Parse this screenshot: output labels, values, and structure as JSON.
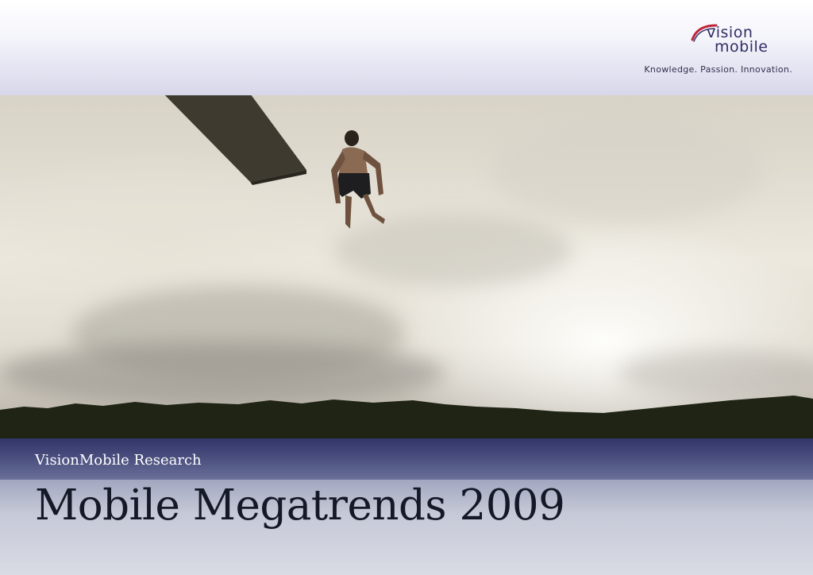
{
  "header": {
    "logo": {
      "line1": "vision",
      "line2": "mobile"
    },
    "tagline": "Knowledge. Passion. Innovation."
  },
  "cover": {
    "subtitle": "VisionMobile Research",
    "title": "Mobile Megatrends 2009"
  },
  "colors": {
    "brand_navy": "#2e2e64",
    "logo_swoosh": "#c0253a",
    "title_band": "#2c3066"
  },
  "icons": [
    "vision-mobile-logo-icon"
  ]
}
